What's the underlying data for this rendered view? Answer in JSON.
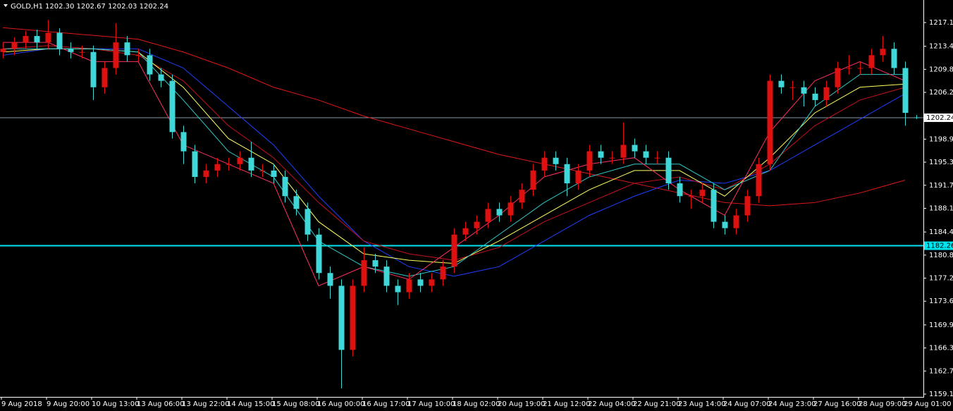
{
  "chart_data": {
    "type": "candlestick",
    "symbol": "GOLD,H1",
    "quote": "1202.30 1202.67 1202.03 1202.24",
    "up_color": "#e01010",
    "down_color": "#3fd8d8",
    "background": "#000000",
    "ylim": [
      1158.66,
      1220.62
    ],
    "yticks": [
      {
        "value": 1217.1,
        "label": "1217.10"
      },
      {
        "value": 1213.4,
        "label": "1213.40"
      },
      {
        "value": 1209.8,
        "label": "1209.80"
      },
      {
        "value": 1206.2,
        "label": "1206.20"
      },
      {
        "value": 1198.9,
        "label": "1198.90"
      },
      {
        "value": 1195.3,
        "label": "1195.30"
      },
      {
        "value": 1191.7,
        "label": "1191.70"
      },
      {
        "value": 1188.1,
        "label": "1188.10"
      },
      {
        "value": 1184.4,
        "label": "1184.40"
      },
      {
        "value": 1180.8,
        "label": "1180.80"
      },
      {
        "value": 1177.2,
        "label": "1177.20"
      },
      {
        "value": 1173.6,
        "label": "1173.60"
      },
      {
        "value": 1169.9,
        "label": "1169.90"
      },
      {
        "value": 1166.3,
        "label": "1166.30"
      },
      {
        "value": 1162.7,
        "label": "1162.70"
      },
      {
        "value": 1159.1,
        "label": "1159.10"
      }
    ],
    "categories": [
      "9 Aug 2018",
      null,
      null,
      null,
      "9 Aug 20:00",
      null,
      null,
      null,
      "10 Aug 13:00",
      null,
      null,
      null,
      "13 Aug 06:00",
      null,
      null,
      null,
      "13 Aug 22:00",
      null,
      null,
      null,
      "14 Aug 15:00",
      null,
      null,
      null,
      "15 Aug 08:00",
      null,
      null,
      null,
      "16 Aug 00:00",
      null,
      null,
      null,
      "16 Aug 17:00",
      null,
      null,
      null,
      "17 Aug 10:00",
      null,
      null,
      null,
      "18 Aug 02:00",
      null,
      null,
      null,
      "20 Aug 19:00",
      null,
      null,
      null,
      "21 Aug 12:00",
      null,
      null,
      null,
      "22 Aug 04:00",
      null,
      null,
      null,
      "22 Aug 21:00",
      null,
      null,
      null,
      "23 Aug 14:00",
      null,
      null,
      null,
      "24 Aug 07:00",
      null,
      null,
      null,
      "24 Aug 23:00",
      null,
      null,
      null,
      "27 Aug 16:00",
      null,
      null,
      null,
      "28 Aug 09:00",
      null,
      null,
      null,
      "29 Aug 01:00",
      null
    ],
    "open": [
      1212.5,
      1213,
      1214,
      1215,
      1214,
      1215.5,
      1213,
      1212.5,
      1212.5,
      1207,
      1210,
      1214,
      1212,
      1212,
      1209,
      1208,
      1200,
      1197,
      1193,
      1194,
      1195,
      1195,
      1196,
      1194,
      1194,
      1193,
      1190,
      1188,
      1184,
      1178,
      1176,
      1166,
      1176,
      1180,
      1179,
      1176,
      1175,
      1177,
      1176,
      1177,
      1179,
      1184,
      1185,
      1186,
      1188,
      1187,
      1189,
      1191,
      1194,
      1196,
      1195,
      1192,
      1194,
      1197,
      1196,
      1196,
      1198,
      1197,
      1196,
      1196,
      1192,
      1190,
      1190,
      1191,
      1186,
      1185,
      1187,
      1190,
      1195,
      1208,
      1207,
      1207,
      1206,
      1205,
      1207,
      1210,
      1210,
      1210,
      1212,
      1213,
      1210,
      1202.3
    ],
    "high": [
      1214,
      1214.8,
      1215.8,
      1216,
      1217.5,
      1216.2,
      1214,
      1213.5,
      1213.5,
      1211,
      1217,
      1215,
      1213,
      1213,
      1210,
      1209,
      1201,
      1198,
      1195,
      1196,
      1196,
      1197,
      1198.5,
      1195,
      1195,
      1194,
      1191,
      1189,
      1185,
      1179,
      1177,
      1177,
      1182,
      1181,
      1180,
      1177,
      1178,
      1178,
      1178,
      1180,
      1185,
      1186,
      1187,
      1189,
      1189,
      1190,
      1192,
      1195,
      1197,
      1197,
      1196,
      1195,
      1198,
      1198,
      1197,
      1201.5,
      1199,
      1198,
      1197,
      1197,
      1193,
      1191,
      1192,
      1192,
      1187,
      1188,
      1191,
      1196,
      1209,
      1209,
      1208,
      1208,
      1207,
      1208,
      1211,
      1212,
      1211,
      1213,
      1215,
      1214,
      1211,
      1202.67
    ],
    "low": [
      1211.5,
      1212,
      1213,
      1213,
      1213,
      1212,
      1211.5,
      1211.5,
      1205,
      1206,
      1209,
      1211,
      1211,
      1208,
      1207,
      1199,
      1195,
      1192,
      1192,
      1193,
      1194,
      1194,
      1193,
      1193,
      1192,
      1189,
      1187,
      1183,
      1177,
      1174,
      1160,
      1165,
      1175,
      1178,
      1175,
      1173,
      1174,
      1175,
      1175,
      1176,
      1178,
      1183,
      1184,
      1185,
      1186,
      1186,
      1188,
      1190,
      1193,
      1194,
      1190,
      1191,
      1193,
      1195,
      1195,
      1195,
      1196,
      1195,
      1195,
      1191,
      1189,
      1188,
      1189,
      1185,
      1184,
      1184,
      1186,
      1189,
      1194,
      1206,
      1205,
      1204,
      1204,
      1204,
      1206,
      1209,
      1209,
      1209,
      1211,
      1209,
      1201,
      1202.03
    ],
    "close": [
      1213,
      1214,
      1215,
      1214,
      1215.5,
      1213,
      1212.5,
      1212.5,
      1207,
      1210,
      1214,
      1212,
      1212,
      1209,
      1208,
      1200,
      1197,
      1193,
      1194,
      1195,
      1195,
      1196,
      1194,
      1194,
      1193,
      1190,
      1188,
      1184,
      1178,
      1176,
      1166,
      1176,
      1180,
      1179,
      1176,
      1175,
      1177,
      1176,
      1177,
      1179,
      1184,
      1185,
      1186,
      1188,
      1187,
      1189,
      1191,
      1194,
      1196,
      1195,
      1192,
      1194,
      1197,
      1196,
      1196,
      1198,
      1197,
      1196,
      1196,
      1192,
      1190,
      1190,
      1191,
      1186,
      1185,
      1187,
      1190,
      1195,
      1208,
      1207,
      1207,
      1206,
      1205,
      1207,
      1210,
      1210,
      1210,
      1212,
      1213,
      1210,
      1203,
      1202.24
    ],
    "overlays": {
      "x": [
        0,
        4,
        8,
        12,
        16,
        20,
        24,
        28,
        32,
        36,
        40,
        44,
        48,
        52,
        56,
        60,
        64,
        68,
        72,
        76,
        80
      ],
      "series": [
        {
          "color": "#e01818",
          "values": [
            1216.3,
            1215.7,
            1215.1,
            1214.5,
            1212.5,
            1210,
            1207,
            1205,
            1202.5,
            1200.5,
            1198.5,
            1196.5,
            1195,
            1193.5,
            1192,
            1190.5,
            1189,
            1188.5,
            1189,
            1190.5,
            1192.5
          ]
        },
        {
          "color": "#1f3fff",
          "values": [
            1212,
            1213,
            1213,
            1213,
            1210,
            1204,
            1198,
            1190,
            1183,
            1179,
            1177.5,
            1179,
            1183,
            1187,
            1190,
            1192.5,
            1192,
            1194,
            1198,
            1202,
            1206
          ]
        },
        {
          "color": "#c81020",
          "values": [
            1213,
            1213.5,
            1213,
            1212,
            1208,
            1201,
            1196,
            1189,
            1183,
            1181,
            1180,
            1182,
            1186,
            1189,
            1192,
            1193,
            1191,
            1195,
            1201,
            1205,
            1207
          ]
        },
        {
          "color": "#ffff60",
          "values": [
            1212.5,
            1213,
            1213,
            1212.5,
            1207,
            1199,
            1195,
            1186,
            1181,
            1180,
            1179.5,
            1183,
            1187,
            1191,
            1194,
            1194,
            1190,
            1196,
            1203,
            1207,
            1207.5
          ]
        },
        {
          "color": "#30c8c8",
          "values": [
            1213,
            1213,
            1213,
            1212.5,
            1205,
            1197,
            1193,
            1183,
            1179,
            1177.5,
            1179,
            1184,
            1189,
            1193,
            1195,
            1195,
            1191,
            1194,
            1204,
            1209,
            1209
          ]
        },
        {
          "color": "#ff3060",
          "values": [
            1214,
            1214,
            1211,
            1211,
            1198,
            1195,
            1192,
            1176,
            1179,
            1177,
            1182,
            1187,
            1193,
            1195,
            1196,
            1191,
            1187,
            1200,
            1208,
            1211,
            1208
          ]
        }
      ]
    },
    "hlines": [
      {
        "value": 1202.24,
        "label": "1202.24",
        "color": "#8a9aa8",
        "label_bg": "#ffffff",
        "label_color": "#000000",
        "width": 1
      },
      {
        "value": 1182.26,
        "label": "1182.26",
        "color": "#00e5f0",
        "label_bg": "#00e5f0",
        "label_color": "#000000",
        "width": 2
      }
    ]
  }
}
